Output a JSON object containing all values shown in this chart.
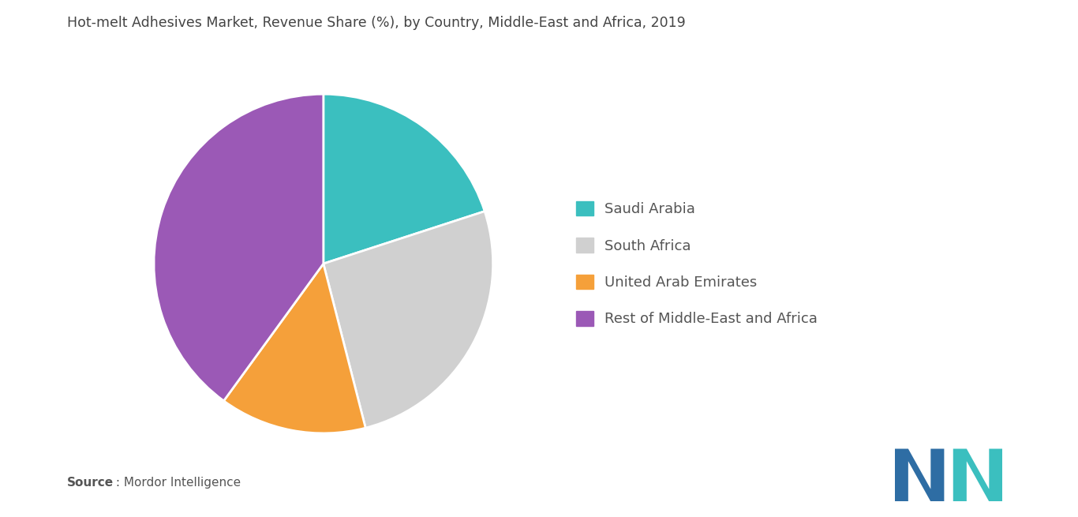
{
  "title": "Hot-melt Adhesives Market, Revenue Share (%), by Country, Middle-East and Africa, 2019",
  "labels": [
    "Saudi Arabia",
    "South Africa",
    "United Arab Emirates",
    "Rest of Middle-East and Africa"
  ],
  "values": [
    20,
    26,
    14,
    40
  ],
  "colors": [
    "#3bbfbf",
    "#d0d0d0",
    "#f5a03a",
    "#9b59b6"
  ],
  "startangle": 90,
  "background_color": "#ffffff",
  "title_fontsize": 12.5,
  "legend_fontsize": 13,
  "source_bold": "Source",
  "source_regular": " : Mordor Intelligence",
  "logo_left_color": "#2e6da4",
  "logo_right_color": "#3bbfbf"
}
